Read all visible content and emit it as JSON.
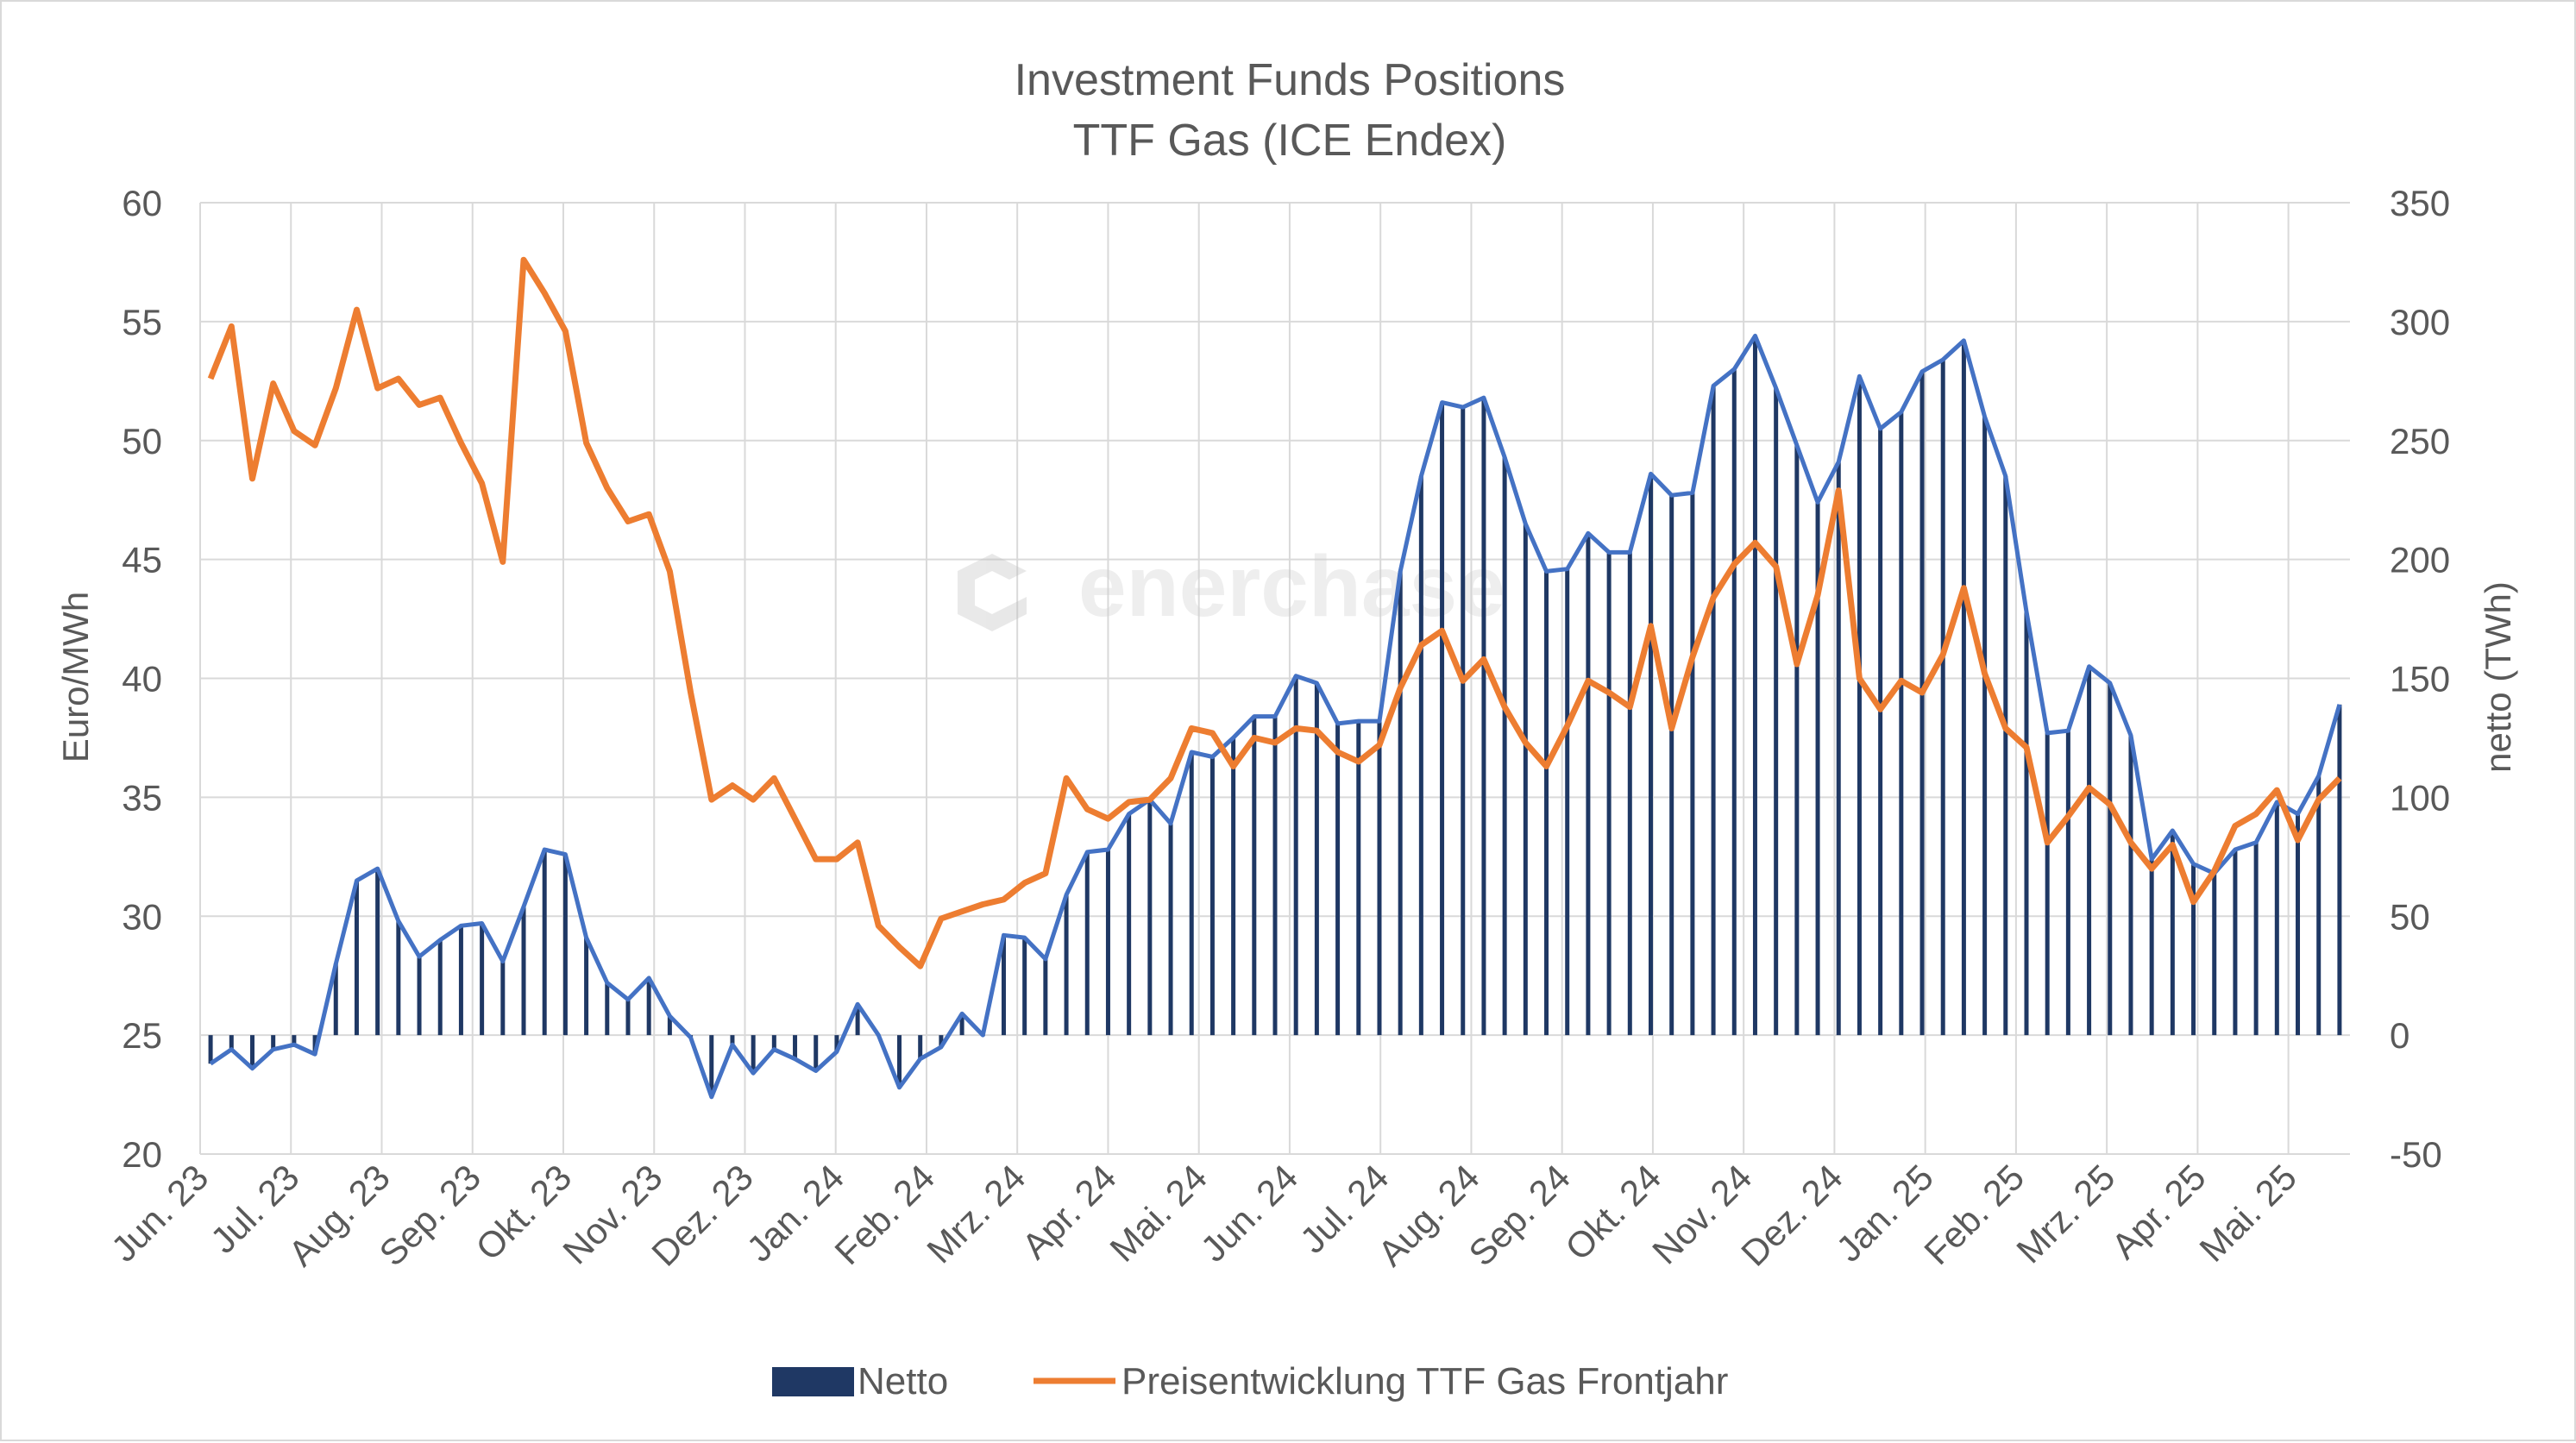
{
  "chart_data": {
    "type": "bar+line",
    "title": "Investment Funds Positions",
    "subtitle": "TTF Gas (ICE Endex)",
    "ylabel_left": "Euro/MWh",
    "ylabel_right": "netto (TWh)",
    "ylim_left": [
      20,
      60
    ],
    "yticks_left": [
      "20",
      "25",
      "30",
      "35",
      "40",
      "45",
      "50",
      "55",
      "60"
    ],
    "ylim_right": [
      -50,
      350
    ],
    "yticks_right": [
      "-50",
      "0",
      "50",
      "100",
      "150",
      "200",
      "250",
      "300",
      "350"
    ],
    "x_tick_labels": [
      "Jun. 23",
      "Jul. 23",
      "Aug. 23",
      "Sep. 23",
      "Okt. 23",
      "Nov. 23",
      "Dez. 23",
      "Jan. 24",
      "Feb. 24",
      "Mrz. 24",
      "Apr. 24",
      "Mai. 24",
      "Jun. 24",
      "Jul. 24",
      "Aug. 24",
      "Sep. 24",
      "Okt. 24",
      "Nov. 24",
      "Dez. 24",
      "Jan. 25",
      "Feb. 25",
      "Mrz. 25",
      "Apr. 25",
      "Mai. 25"
    ],
    "weeks_per_month": 4.35,
    "grid": true,
    "legend_position": "bottom",
    "watermark": "enerchase",
    "series": [
      {
        "name": "Netto",
        "type": "bar",
        "axis": "right",
        "color": "#1f3864",
        "outline_color": "#4472c4",
        "values": [
          -12,
          -6,
          -14,
          -6,
          -4,
          -8,
          30,
          65,
          70,
          48,
          33,
          40,
          46,
          47,
          31,
          54,
          78,
          76,
          41,
          22,
          15,
          24,
          8,
          -1,
          -26,
          -4,
          -16,
          -6,
          -10,
          -15,
          -7,
          13,
          0,
          -22,
          -10,
          -5,
          9,
          0,
          42,
          41,
          32,
          59,
          77,
          78,
          93,
          99,
          89,
          119,
          117,
          125,
          134,
          134,
          151,
          148,
          131,
          132,
          132,
          195,
          235,
          266,
          264,
          268,
          243,
          215,
          195,
          196,
          211,
          203,
          203,
          236,
          227,
          228,
          273,
          280,
          294,
          272,
          248,
          224,
          241,
          277,
          255,
          262,
          279,
          284,
          292,
          260,
          235,
          178,
          127,
          128,
          155,
          148,
          126,
          74,
          86,
          72,
          68,
          78,
          81,
          98,
          93,
          109,
          139
        ]
      },
      {
        "name": "Preisentwicklung TTF Gas Frontjahr",
        "type": "line",
        "axis": "left",
        "color": "#ed7d31",
        "values": [
          52.6,
          54.8,
          48.4,
          52.4,
          50.4,
          49.8,
          52.2,
          55.5,
          52.2,
          52.6,
          51.5,
          51.8,
          49.9,
          48.2,
          44.9,
          57.6,
          56.2,
          54.6,
          49.9,
          48.0,
          46.6,
          46.9,
          44.5,
          39.4,
          34.9,
          35.5,
          34.9,
          35.8,
          34.1,
          32.4,
          32.4,
          33.1,
          29.6,
          28.7,
          27.9,
          29.9,
          30.2,
          30.5,
          30.7,
          31.4,
          31.8,
          35.8,
          34.5,
          34.1,
          34.8,
          34.9,
          35.8,
          37.9,
          37.7,
          36.3,
          37.5,
          37.3,
          37.9,
          37.8,
          36.9,
          36.5,
          37.2,
          39.6,
          41.4,
          42.0,
          39.9,
          40.8,
          38.8,
          37.3,
          36.3,
          38.0,
          39.9,
          39.4,
          38.8,
          42.2,
          37.9,
          40.9,
          43.4,
          44.8,
          45.7,
          44.7,
          40.6,
          43.5,
          47.9,
          40.0,
          38.7,
          39.9,
          39.4,
          41.0,
          43.8,
          40.2,
          37.9,
          37.1,
          33.1,
          34.2,
          35.4,
          34.7,
          33.1,
          32.0,
          33.0,
          30.6,
          31.9,
          33.8,
          34.3,
          35.3,
          33.2,
          34.9,
          35.8
        ]
      }
    ]
  },
  "legend": {
    "items": [
      {
        "label": "Netto",
        "color": "#1f3864"
      },
      {
        "label": "Preisentwicklung TTF Gas Frontjahr",
        "color": "#ed7d31"
      }
    ]
  }
}
